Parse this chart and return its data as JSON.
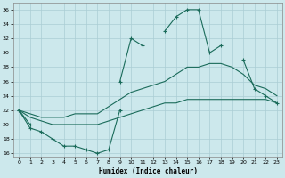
{
  "xlabel": "Humidex (Indice chaleur)",
  "bg_color": "#cce8ec",
  "grid_color": "#aacdd4",
  "line_color": "#1a6b5a",
  "x_values": [
    0,
    1,
    2,
    3,
    4,
    5,
    6,
    7,
    8,
    9,
    10,
    11,
    12,
    13,
    14,
    15,
    16,
    17,
    18,
    19,
    20,
    21,
    22,
    23
  ],
  "line_jagged": [
    22,
    20,
    null,
    null,
    null,
    null,
    null,
    null,
    null,
    26,
    32,
    31,
    null,
    33,
    35,
    36,
    36,
    30,
    31,
    null,
    29,
    25,
    24,
    23
  ],
  "line_upper": [
    22,
    21.5,
    21,
    21,
    21,
    21.5,
    21.5,
    21.5,
    22.5,
    23.5,
    24.5,
    25,
    25.5,
    26,
    27,
    28,
    28,
    28.5,
    28.5,
    28,
    27,
    25.5,
    25,
    24
  ],
  "line_lower_straight": [
    22,
    21,
    20.5,
    20,
    20,
    20,
    20,
    20,
    20.5,
    21,
    21.5,
    22,
    22.5,
    23,
    23,
    23.5,
    23.5,
    23.5,
    23.5,
    23.5,
    23.5,
    23.5,
    23.5,
    23
  ],
  "line_valley": [
    22,
    19.5,
    19,
    18,
    17,
    17,
    16.5,
    16,
    16.5,
    22,
    null,
    null,
    null,
    null,
    null,
    null,
    null,
    null,
    null,
    null,
    null,
    null,
    null,
    null
  ],
  "ylim": [
    15.5,
    37
  ],
  "xlim": [
    -0.5,
    23.5
  ],
  "yticks": [
    16,
    18,
    20,
    22,
    24,
    26,
    28,
    30,
    32,
    34,
    36
  ],
  "xticks": [
    0,
    1,
    2,
    3,
    4,
    5,
    6,
    7,
    8,
    9,
    10,
    11,
    12,
    13,
    14,
    15,
    16,
    17,
    18,
    19,
    20,
    21,
    22,
    23
  ]
}
